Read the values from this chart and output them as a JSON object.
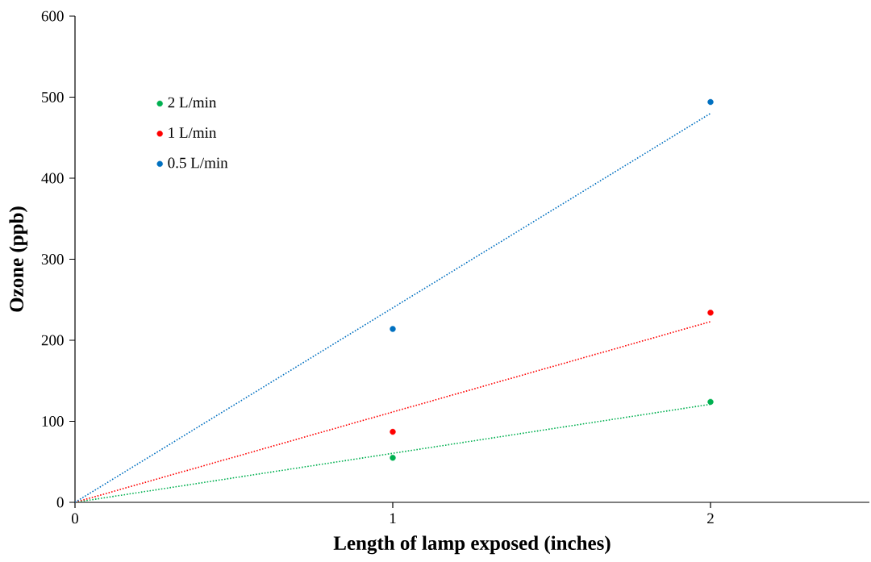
{
  "chart_data": {
    "type": "scatter",
    "xlabel": "Length of lamp exposed (inches)",
    "ylabel": "Ozone (ppb)",
    "xlim": [
      0,
      2.5
    ],
    "xticks": [
      0,
      1,
      2
    ],
    "ylim": [
      0,
      600
    ],
    "yticks": [
      0,
      100,
      200,
      300,
      400,
      500,
      600
    ],
    "grid": false,
    "legend": "top left",
    "series": [
      {
        "name": "2 L/min",
        "color": "#00b050",
        "x": [
          1,
          2
        ],
        "values": [
          55,
          124
        ],
        "marker": "circle"
      },
      {
        "name": "1 L/min",
        "color": "#ff0000",
        "x": [
          1,
          2
        ],
        "values": [
          87,
          234
        ],
        "marker": "circle"
      },
      {
        "name": "0.5 L/min",
        "color": "#0070c0",
        "x": [
          1,
          2
        ],
        "values": [
          214,
          494
        ],
        "marker": "circle"
      },
      {
        "type": "line",
        "color": "#00b050",
        "x": [
          0,
          2
        ],
        "values": [
          0,
          121
        ],
        "line_style": "dotted",
        "marker": "none"
      },
      {
        "type": "line",
        "color": "#ff0000",
        "x": [
          0,
          2
        ],
        "values": [
          0,
          223
        ],
        "line_style": "dotted",
        "marker": "none"
      },
      {
        "type": "line",
        "color": "#0070c0",
        "x": [
          0,
          2
        ],
        "values": [
          0,
          480
        ],
        "line_style": "dotted",
        "marker": "none"
      }
    ]
  }
}
